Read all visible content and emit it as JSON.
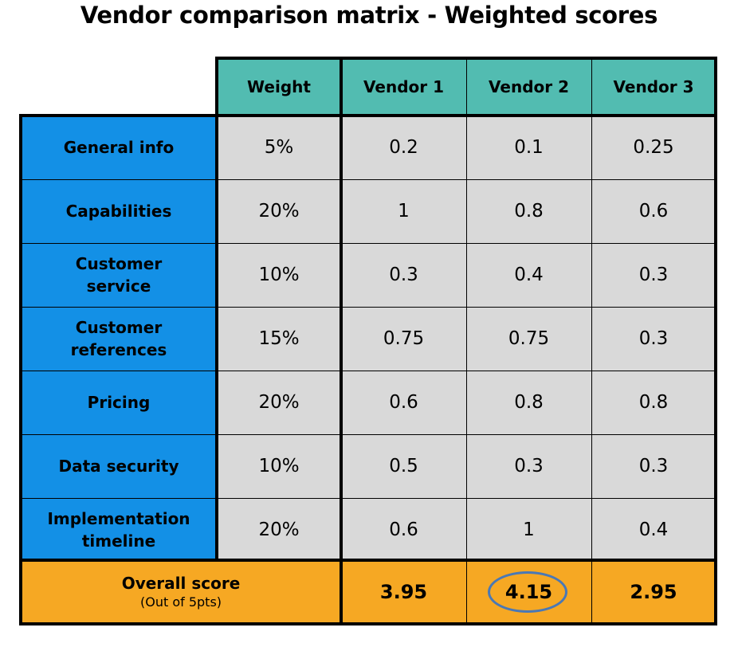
{
  "title": "Vendor comparison matrix - Weighted scores",
  "table": {
    "headers": [
      "Weight",
      "Vendor 1",
      "Vendor 2",
      "Vendor 3"
    ],
    "rows": [
      {
        "label": "General info",
        "weight": "5%",
        "v1": "0.2",
        "v2": "0.1",
        "v3": "0.25"
      },
      {
        "label": "Capabilities",
        "weight": "20%",
        "v1": "1",
        "v2": "0.8",
        "v3": "0.6"
      },
      {
        "label": "Customer service",
        "weight": "10%",
        "v1": "0.3",
        "v2": "0.4",
        "v3": "0.3"
      },
      {
        "label": "Customer references",
        "weight": "15%",
        "v1": "0.75",
        "v2": "0.75",
        "v3": "0.3"
      },
      {
        "label": "Pricing",
        "weight": "20%",
        "v1": "0.6",
        "v2": "0.8",
        "v3": "0.8"
      },
      {
        "label": "Data security",
        "weight": "10%",
        "v1": "0.5",
        "v2": "0.3",
        "v3": "0.3"
      },
      {
        "label": "Implementation timeline",
        "weight": "20%",
        "v1": "0.6",
        "v2": "1",
        "v3": "0.4"
      }
    ],
    "overall": {
      "label": "Overall score",
      "sublabel": "(Out of 5pts)",
      "v1": "3.95",
      "v2": "4.15",
      "v3": "2.95",
      "highlighted": "Vendor 2"
    }
  },
  "colors": {
    "header": "#52bcb1",
    "label": "#1390e6",
    "value": "#d9d9d9",
    "overall": "#f6a823",
    "highlight_circle": "#4a78b5"
  }
}
